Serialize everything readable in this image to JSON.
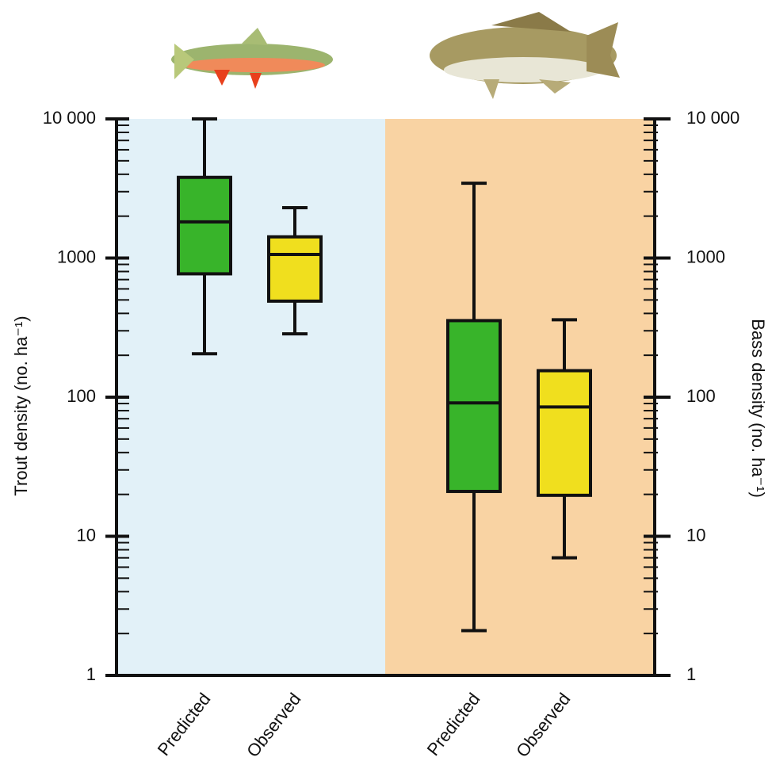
{
  "chart_data": {
    "type": "box",
    "categories": [
      "Predicted",
      "Observed",
      "Predicted",
      "Observed"
    ],
    "ylabel": "Trout density (no. ha⁻¹)",
    "y2label": "Bass density (no. ha⁻¹)",
    "log_scale": true,
    "ylim": [
      1,
      10000
    ],
    "yticks": [
      1,
      10,
      100,
      1000,
      {
        "value": 10000,
        "label": "10 000"
      }
    ],
    "y2lim": [
      1,
      10000
    ],
    "y2ticks": [
      1,
      10,
      100,
      1000,
      {
        "value": 10000,
        "label": "10 000"
      }
    ],
    "yminorticks": [
      2,
      3,
      4,
      5,
      6,
      7,
      8,
      9,
      20,
      30,
      40,
      50,
      60,
      70,
      80,
      90,
      200,
      300,
      400,
      500,
      600,
      700,
      800,
      900,
      2000,
      3000,
      4000,
      5000,
      6000,
      7000,
      8000,
      9000
    ],
    "y2minorticks": [
      2,
      3,
      4,
      5,
      6,
      7,
      8,
      9,
      20,
      30,
      40,
      50,
      60,
      70,
      80,
      90,
      200,
      300,
      400,
      500,
      600,
      700,
      800,
      900,
      2000,
      3000,
      4000,
      5000,
      6000,
      7000,
      8000,
      9000
    ],
    "panel_colors": [
      "#e2f1f8",
      "#f9d3a3"
    ],
    "boxes": [
      {
        "min": 205,
        "q1": 770,
        "median": 1820,
        "q3": 3800,
        "max": 10000,
        "color": "#38b42a"
      },
      {
        "min": 285,
        "q1": 490,
        "median": 1060,
        "q3": 1420,
        "max": 2300,
        "color": "#f0df1e"
      },
      {
        "min": 2.1,
        "q1": 21,
        "median": 91,
        "q3": 355,
        "max": 3450,
        "color": "#38b42a",
        "axis": "y2"
      },
      {
        "min": 7,
        "q1": 19.7,
        "median": 85,
        "q3": 155,
        "max": 360,
        "color": "#f0df1e",
        "axis": "y2"
      }
    ]
  }
}
